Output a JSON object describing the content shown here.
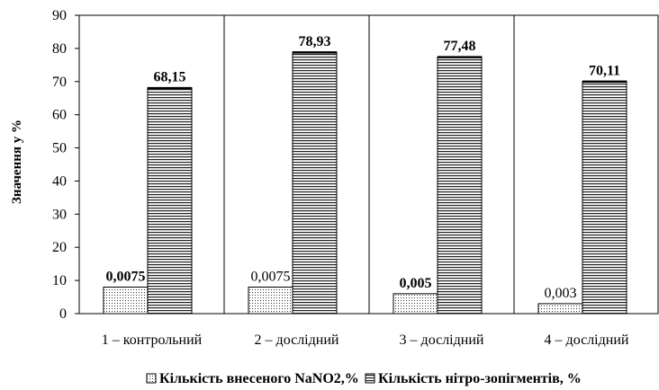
{
  "chart_data": {
    "type": "bar",
    "title": "",
    "ylabel": "Значення у %",
    "xlabel": "",
    "ylim": [
      0,
      90
    ],
    "yticks": [
      0,
      10,
      20,
      30,
      40,
      50,
      60,
      70,
      80,
      90
    ],
    "grid": "vertical category separators only",
    "legend_position": "bottom",
    "categories": [
      "1 – контрольний",
      "2 – дослідний",
      "3 – дослідний",
      "4 – дослідний"
    ],
    "series": [
      {
        "name": "Кількість внесеного NaNO2,%",
        "values": [
          0.0075,
          0.0075,
          0.005,
          0.003
        ],
        "display_heights": [
          8,
          8,
          6,
          3
        ],
        "labels": [
          "0,0075",
          "0,0075",
          "0,005",
          "0,003"
        ],
        "label_bold": [
          true,
          false,
          true,
          false
        ],
        "pattern": "dotted"
      },
      {
        "name": "Кількість нітро-зопігментів, %",
        "values": [
          68.15,
          78.93,
          77.48,
          70.11
        ],
        "labels": [
          "68,15",
          "78,93",
          "77,48",
          "70,11"
        ],
        "label_bold": [
          true,
          true,
          true,
          true
        ],
        "pattern": "horizontal-lines"
      }
    ]
  }
}
